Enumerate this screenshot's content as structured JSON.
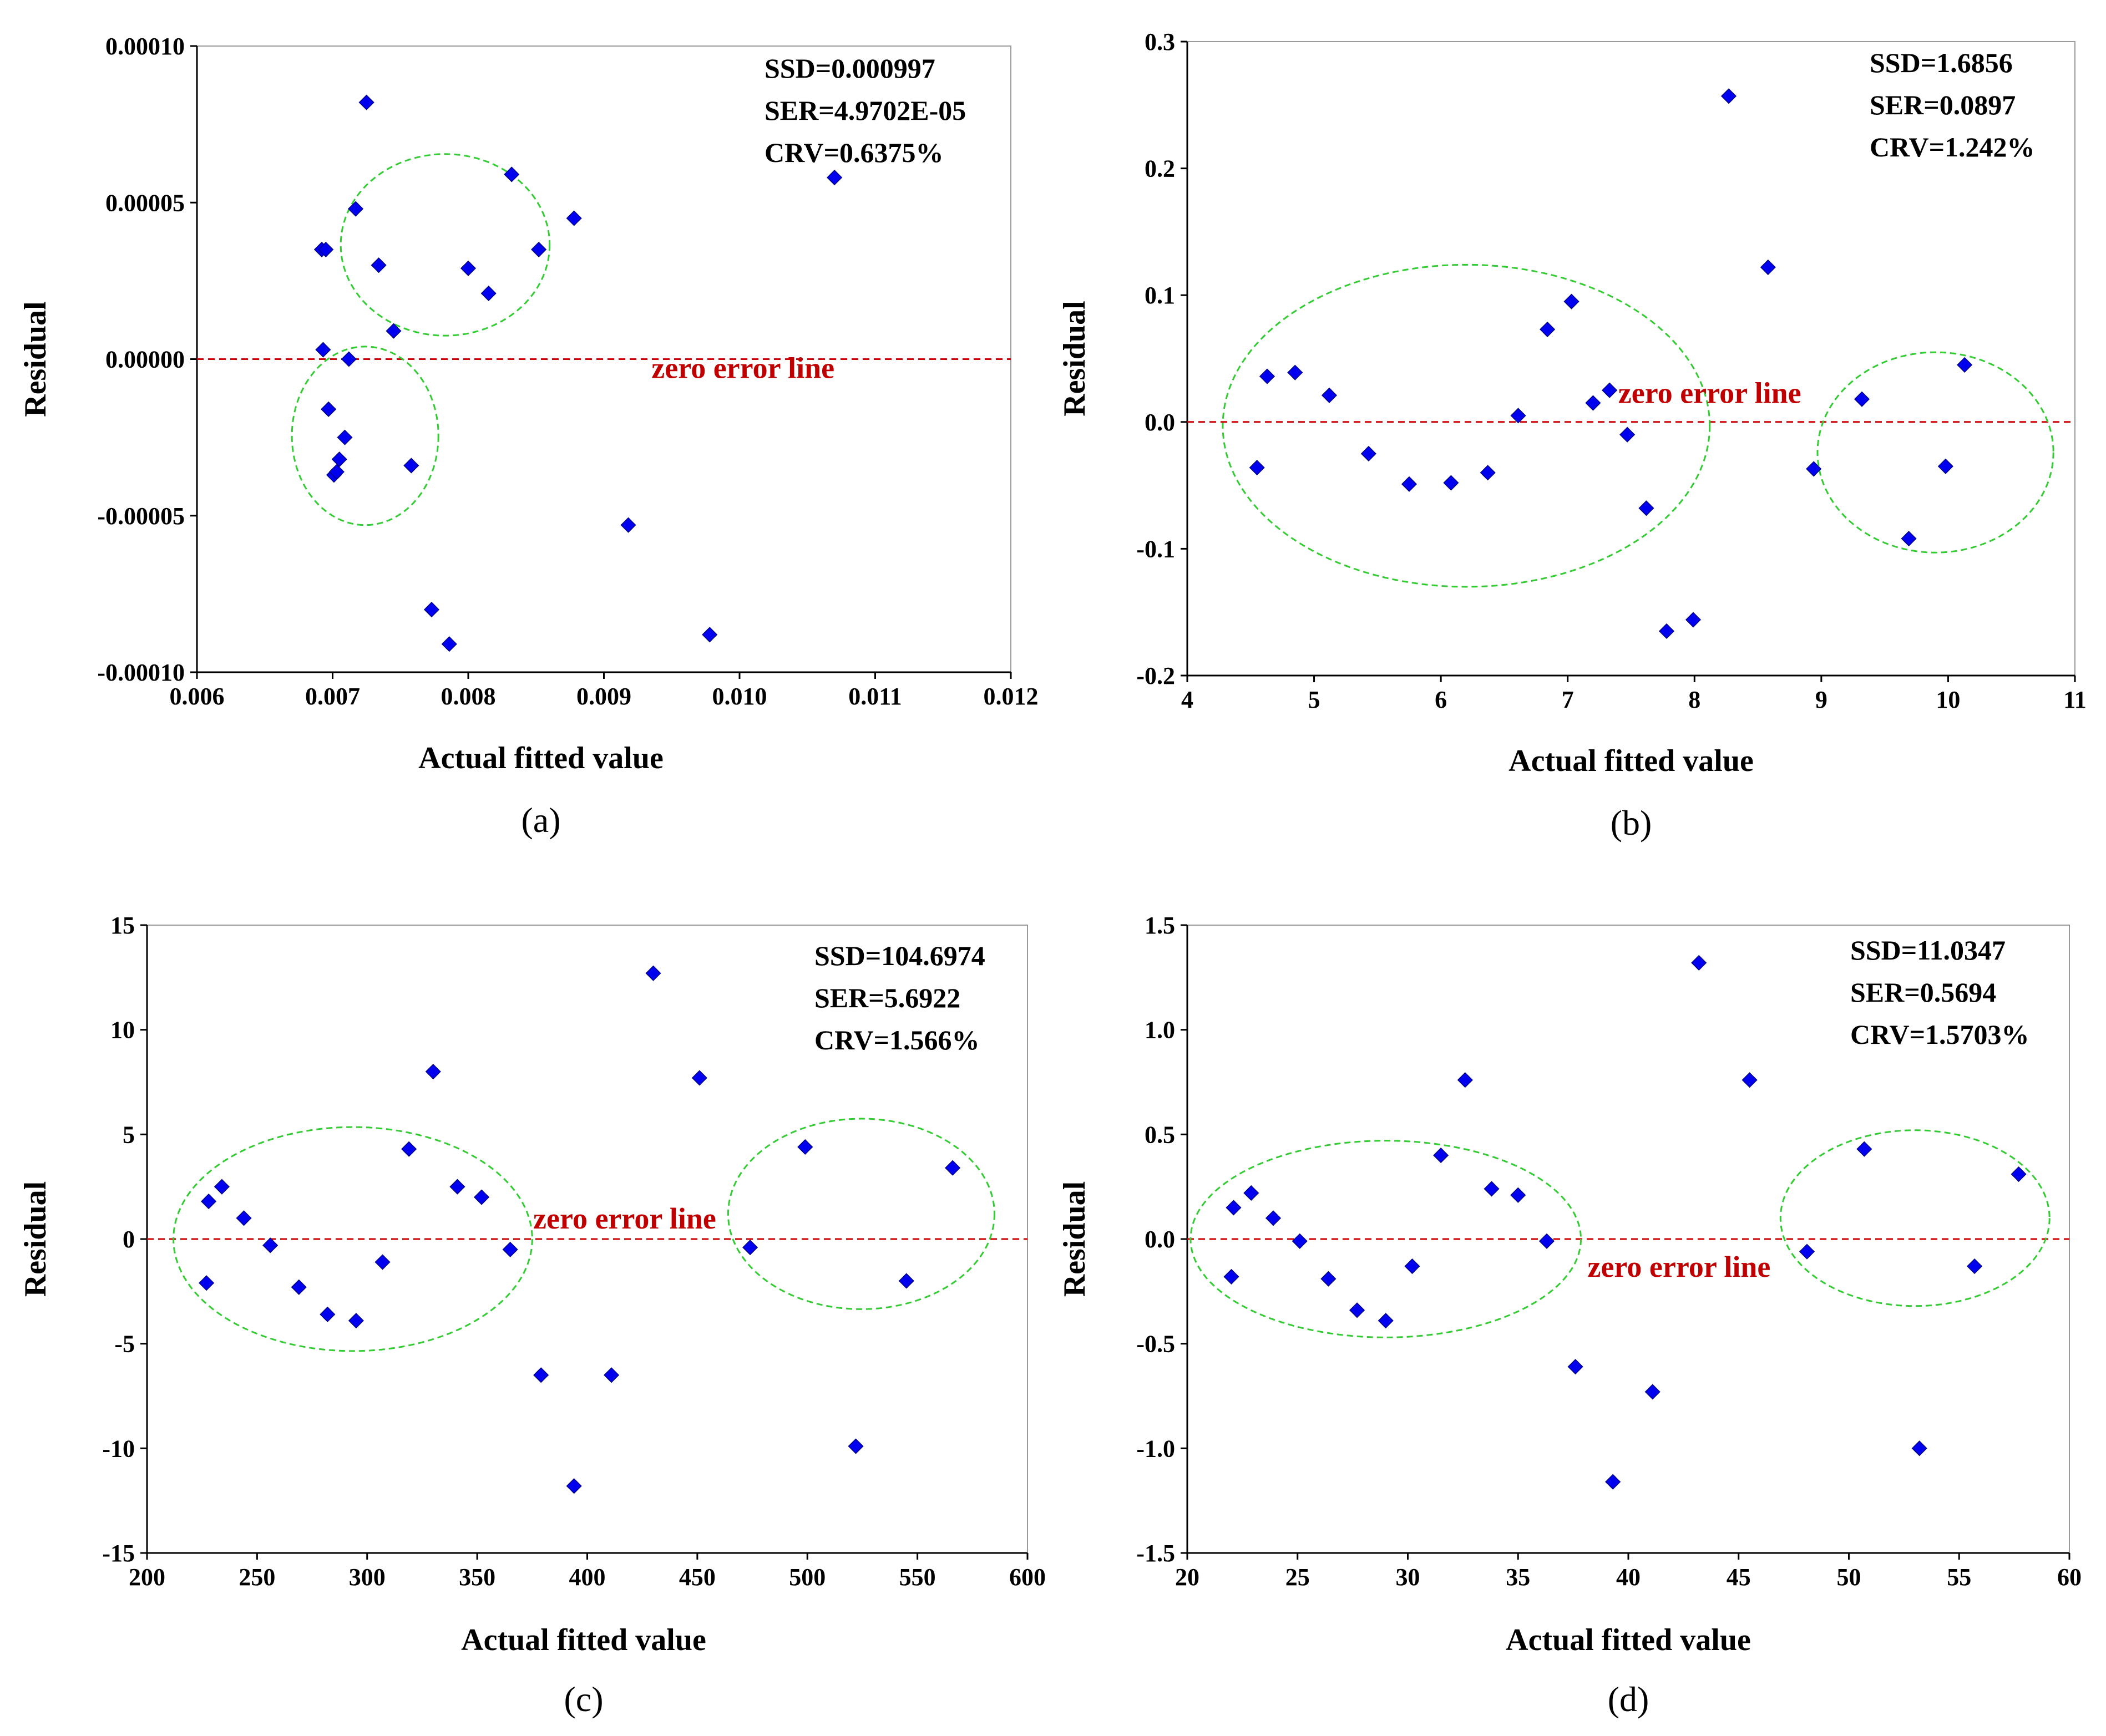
{
  "colors": {
    "point": "#0000ee",
    "zero_line": "#cc0000",
    "zero_label": "#c00000",
    "ellipse": "#33cc33",
    "axis": "#000000"
  },
  "chart_data": [
    {
      "type": "scatter",
      "panel_label": "(a)",
      "xlabel": "Actual fitted value",
      "ylabel": "Residual",
      "xlim": [
        0.006,
        0.012
      ],
      "ylim": [
        -0.0001,
        0.0001
      ],
      "xticks": [
        "0.006",
        "0.007",
        "0.008",
        "0.009",
        "0.010",
        "0.011",
        "0.012"
      ],
      "yticks": [
        "-0.00010",
        "-0.00005",
        "0.00000",
        "0.00005",
        "0.00010"
      ],
      "stats": [
        "SSD=0.000997",
        "SER=4.9702E-05",
        "CRV=0.6375%"
      ],
      "zero_line_label": "zero error line",
      "zero_line_label_pos": [
        0.0107,
        -6e-06
      ],
      "points": [
        [
          0.00725,
          8.2e-05
        ],
        [
          0.00692,
          3.5e-05
        ],
        [
          0.00695,
          3.5e-05
        ],
        [
          0.00717,
          4.8e-05
        ],
        [
          0.00734,
          3e-05
        ],
        [
          0.008,
          2.9e-05
        ],
        [
          0.00815,
          2.1e-05
        ],
        [
          0.00832,
          5.9e-05
        ],
        [
          0.00852,
          3.5e-05
        ],
        [
          0.00878,
          4.5e-05
        ],
        [
          0.00745,
          9e-06
        ],
        [
          0.00693,
          3e-06
        ],
        [
          0.00712,
          0.0
        ],
        [
          0.00697,
          -1.6e-05
        ],
        [
          0.00709,
          -2.5e-05
        ],
        [
          0.00705,
          -3.2e-05
        ],
        [
          0.00701,
          -3.7e-05
        ],
        [
          0.00703,
          -3.6e-05
        ],
        [
          0.00758,
          -3.4e-05
        ],
        [
          0.00918,
          -5.3e-05
        ],
        [
          0.00773,
          -8e-05
        ],
        [
          0.00786,
          -9.1e-05
        ],
        [
          0.00978,
          -8.8e-05
        ],
        [
          0.0107,
          5.8e-05
        ]
      ],
      "ellipses": [
        {
          "cx": 0.00783,
          "cy": 3.65e-05,
          "rx": 0.00077,
          "ry": 2.9e-05
        },
        {
          "cx": 0.00724,
          "cy": -2.45e-05,
          "rx": 0.00054,
          "ry": 2.85e-05
        }
      ]
    },
    {
      "type": "scatter",
      "panel_label": "(b)",
      "xlabel": "Actual fitted value",
      "ylabel": "Residual",
      "xlim": [
        4,
        11
      ],
      "ylim": [
        -0.2,
        0.3
      ],
      "xticks": [
        "4",
        "5",
        "6",
        "7",
        "8",
        "9",
        "10",
        "11"
      ],
      "yticks": [
        "-0.2",
        "-0.1",
        "0.0",
        "0.1",
        "0.2",
        "0.3"
      ],
      "stats": [
        "SSD=1.6856",
        "SER=0.0897",
        "CRV=1.242%"
      ],
      "zero_line_label": "zero error line",
      "zero_line_label_pos": [
        8.12,
        0.015
      ],
      "points": [
        [
          4.55,
          -0.036
        ],
        [
          4.63,
          0.036
        ],
        [
          4.85,
          0.039
        ],
        [
          5.12,
          0.021
        ],
        [
          5.43,
          -0.025
        ],
        [
          5.75,
          -0.049
        ],
        [
          6.08,
          -0.048
        ],
        [
          6.37,
          -0.04
        ],
        [
          6.61,
          0.005
        ],
        [
          6.84,
          0.073
        ],
        [
          7.03,
          0.095
        ],
        [
          7.2,
          0.015
        ],
        [
          7.33,
          0.025
        ],
        [
          7.47,
          -0.01
        ],
        [
          7.62,
          -0.068
        ],
        [
          7.78,
          -0.165
        ],
        [
          7.99,
          -0.156
        ],
        [
          8.27,
          0.257
        ],
        [
          8.58,
          0.122
        ],
        [
          8.94,
          -0.037
        ],
        [
          9.32,
          0.018
        ],
        [
          9.69,
          -0.092
        ],
        [
          9.98,
          -0.035
        ],
        [
          10.13,
          0.045
        ]
      ],
      "ellipses": [
        {
          "cx": 6.2,
          "cy": -0.003,
          "rx": 1.92,
          "ry": 0.127
        },
        {
          "cx": 9.9,
          "cy": -0.024,
          "rx": 0.93,
          "ry": 0.079
        }
      ]
    },
    {
      "type": "scatter",
      "panel_label": "(c)",
      "xlabel": "Actual fitted value",
      "ylabel": "Residual",
      "xlim": [
        200,
        600
      ],
      "ylim": [
        -15,
        15
      ],
      "xticks": [
        "200",
        "250",
        "300",
        "350",
        "400",
        "450",
        "500",
        "550",
        "600"
      ],
      "yticks": [
        "-15",
        "-10",
        "-5",
        "0",
        "5",
        "10",
        "15"
      ],
      "stats": [
        "SSD=104.6974",
        "SER=5.6922",
        "CRV=1.566%"
      ],
      "zero_line_label": "zero error line",
      "zero_line_label_pos": [
        417,
        0.5
      ],
      "points": [
        [
          227,
          -2.1
        ],
        [
          228,
          1.8
        ],
        [
          234,
          2.5
        ],
        [
          244,
          1.0
        ],
        [
          256,
          -0.3
        ],
        [
          269,
          -2.3
        ],
        [
          282,
          -3.6
        ],
        [
          295,
          -3.9
        ],
        [
          307,
          -1.1
        ],
        [
          319,
          4.3
        ],
        [
          330,
          8.0
        ],
        [
          341,
          2.5
        ],
        [
          352,
          2.0
        ],
        [
          365,
          -0.5
        ],
        [
          379,
          -6.5
        ],
        [
          394,
          -11.8
        ],
        [
          411,
          -6.5
        ],
        [
          430,
          12.7
        ],
        [
          451,
          7.7
        ],
        [
          474,
          -0.4
        ],
        [
          499,
          4.4
        ],
        [
          522,
          -9.9
        ],
        [
          545,
          -2.0
        ],
        [
          566,
          3.4
        ]
      ],
      "ellipses": [
        {
          "cx": 293.5,
          "cy": 0.0,
          "rx": 81.5,
          "ry": 5.35
        },
        {
          "cx": 524.5,
          "cy": 1.2,
          "rx": 60.5,
          "ry": 4.55
        }
      ]
    },
    {
      "type": "scatter",
      "panel_label": "(d)",
      "xlabel": "Actual fitted value",
      "ylabel": "Residual",
      "xlim": [
        20,
        60
      ],
      "ylim": [
        -1.5,
        1.5
      ],
      "xticks": [
        "20",
        "25",
        "30",
        "35",
        "40",
        "45",
        "50",
        "55",
        "60"
      ],
      "yticks": [
        "-1.5",
        "-1.0",
        "-0.5",
        "0.0",
        "0.5",
        "1.0",
        "1.5"
      ],
      "stats": [
        "SSD=11.0347",
        "SER=0.5694",
        "CRV=1.5703%"
      ],
      "zero_line_label": "zero error line",
      "zero_line_label_pos": [
        42.3,
        -0.18
      ],
      "points": [
        [
          22.0,
          -0.18
        ],
        [
          22.1,
          0.15
        ],
        [
          22.9,
          0.22
        ],
        [
          23.9,
          0.1
        ],
        [
          25.1,
          -0.01
        ],
        [
          26.4,
          -0.19
        ],
        [
          27.7,
          -0.34
        ],
        [
          29.0,
          -0.39
        ],
        [
          30.2,
          -0.13
        ],
        [
          31.5,
          0.4
        ],
        [
          32.6,
          0.76
        ],
        [
          33.8,
          0.24
        ],
        [
          35.0,
          0.21
        ],
        [
          36.3,
          -0.01
        ],
        [
          37.6,
          -0.61
        ],
        [
          39.3,
          -1.16
        ],
        [
          41.1,
          -0.73
        ],
        [
          43.2,
          1.32
        ],
        [
          45.5,
          0.76
        ],
        [
          48.1,
          -0.06
        ],
        [
          50.7,
          0.43
        ],
        [
          53.2,
          -1.0
        ],
        [
          55.7,
          -0.13
        ],
        [
          57.7,
          0.31
        ]
      ],
      "ellipses": [
        {
          "cx": 29.0,
          "cy": 0.0,
          "rx": 8.85,
          "ry": 0.47
        },
        {
          "cx": 53.0,
          "cy": 0.1,
          "rx": 6.1,
          "ry": 0.42
        }
      ]
    }
  ]
}
